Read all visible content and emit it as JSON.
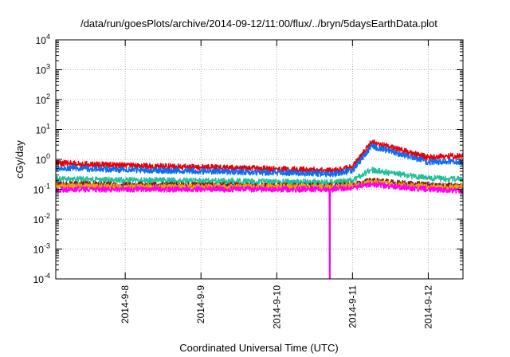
{
  "chart_data": {
    "type": "line",
    "title": "/data/run/goesPlots/archive/2014-09-12/11:00/flux/../bryn/5daysEarthData.plot",
    "xlabel": "Coordinated Universal Time (UTC)",
    "ylabel": "cGy/day",
    "x_scale": "time",
    "x_range": [
      "2014-09-07T02:00",
      "2014-09-12T11:00"
    ],
    "x_ticks": [
      "2014-9-8",
      "2014-9-9",
      "2014-9-10",
      "2014-9-11",
      "2014-9-12"
    ],
    "y_scale": "log",
    "y_range": [
      0.0001,
      10000
    ],
    "y_ticks": [
      {
        "base": "10",
        "exp": "-4"
      },
      {
        "base": "10",
        "exp": "-3"
      },
      {
        "base": "10",
        "exp": "-2"
      },
      {
        "base": "10",
        "exp": "-1"
      },
      {
        "base": "10",
        "exp": "0"
      },
      {
        "base": "10",
        "exp": "1"
      },
      {
        "base": "10",
        "exp": "2"
      },
      {
        "base": "10",
        "exp": "3"
      },
      {
        "base": "10",
        "exp": "4"
      }
    ],
    "grid": true,
    "series": [
      {
        "color": "#e8000b",
        "x": [
          "2014-09-07T02:00",
          "2014-09-08T00:00",
          "2014-09-09T00:00",
          "2014-09-10T00:00",
          "2014-09-10T18:00",
          "2014-09-11T00:00",
          "2014-09-11T06:00",
          "2014-09-11T12:00",
          "2014-09-11T18:00",
          "2014-09-12T00:00",
          "2014-09-12T06:00",
          "2014-09-12T11:00"
        ],
        "values": [
          0.75,
          0.62,
          0.55,
          0.48,
          0.42,
          0.55,
          3.8,
          2.6,
          1.7,
          1.15,
          1.3,
          1.25
        ]
      },
      {
        "color": "#0a6ef0",
        "x": [
          "2014-09-07T02:00",
          "2014-09-08T00:00",
          "2014-09-09T00:00",
          "2014-09-10T00:00",
          "2014-09-10T18:00",
          "2014-09-11T00:00",
          "2014-09-11T06:00",
          "2014-09-11T12:00",
          "2014-09-11T18:00",
          "2014-09-12T00:00",
          "2014-09-12T06:00",
          "2014-09-12T11:00"
        ],
        "values": [
          0.52,
          0.45,
          0.4,
          0.36,
          0.32,
          0.42,
          2.8,
          1.9,
          1.2,
          0.8,
          0.85,
          0.8
        ]
      },
      {
        "color": "#1fc19a",
        "x": [
          "2014-09-07T02:00",
          "2014-09-08T00:00",
          "2014-09-09T00:00",
          "2014-09-10T00:00",
          "2014-09-10T18:00",
          "2014-09-11T00:00",
          "2014-09-11T06:00",
          "2014-09-11T12:00",
          "2014-09-11T18:00",
          "2014-09-12T00:00",
          "2014-09-12T06:00",
          "2014-09-12T11:00"
        ],
        "values": [
          0.22,
          0.2,
          0.19,
          0.18,
          0.17,
          0.2,
          0.45,
          0.35,
          0.28,
          0.24,
          0.22,
          0.22
        ]
      },
      {
        "color": "#7a1e1e",
        "x": [
          "2014-09-07T02:00",
          "2014-09-08T00:00",
          "2014-09-09T00:00",
          "2014-09-10T00:00",
          "2014-09-10T18:00",
          "2014-09-11T00:00",
          "2014-09-11T06:00",
          "2014-09-11T12:00",
          "2014-09-11T18:00",
          "2014-09-12T00:00",
          "2014-09-12T06:00",
          "2014-09-12T11:00"
        ],
        "values": [
          0.15,
          0.14,
          0.14,
          0.13,
          0.13,
          0.14,
          0.2,
          0.17,
          0.15,
          0.14,
          0.13,
          0.13
        ]
      },
      {
        "color": "#f4a000",
        "x": [
          "2014-09-07T02:00",
          "2014-09-08T00:00",
          "2014-09-09T00:00",
          "2014-09-10T00:00",
          "2014-09-10T18:00",
          "2014-09-11T00:00",
          "2014-09-11T06:00",
          "2014-09-11T12:00",
          "2014-09-11T18:00",
          "2014-09-12T00:00",
          "2014-09-12T06:00",
          "2014-09-12T11:00"
        ],
        "values": [
          0.13,
          0.12,
          0.12,
          0.12,
          0.12,
          0.13,
          0.17,
          0.15,
          0.13,
          0.12,
          0.12,
          0.12
        ]
      },
      {
        "color": "#ff00f0",
        "x": [
          "2014-09-07T02:00",
          "2014-09-08T00:00",
          "2014-09-09T00:00",
          "2014-09-10T00:00",
          "2014-09-10T16:40",
          "2014-09-10T16:48",
          "2014-09-10T16:56",
          "2014-09-11T00:00",
          "2014-09-11T06:00",
          "2014-09-11T12:00",
          "2014-09-11T18:00",
          "2014-09-12T00:00",
          "2014-09-12T06:00",
          "2014-09-12T11:00"
        ],
        "values": [
          0.1,
          0.1,
          0.1,
          0.1,
          0.1,
          0.0001,
          0.1,
          0.11,
          0.15,
          0.13,
          0.11,
          0.1,
          0.095,
          0.09
        ]
      }
    ]
  }
}
